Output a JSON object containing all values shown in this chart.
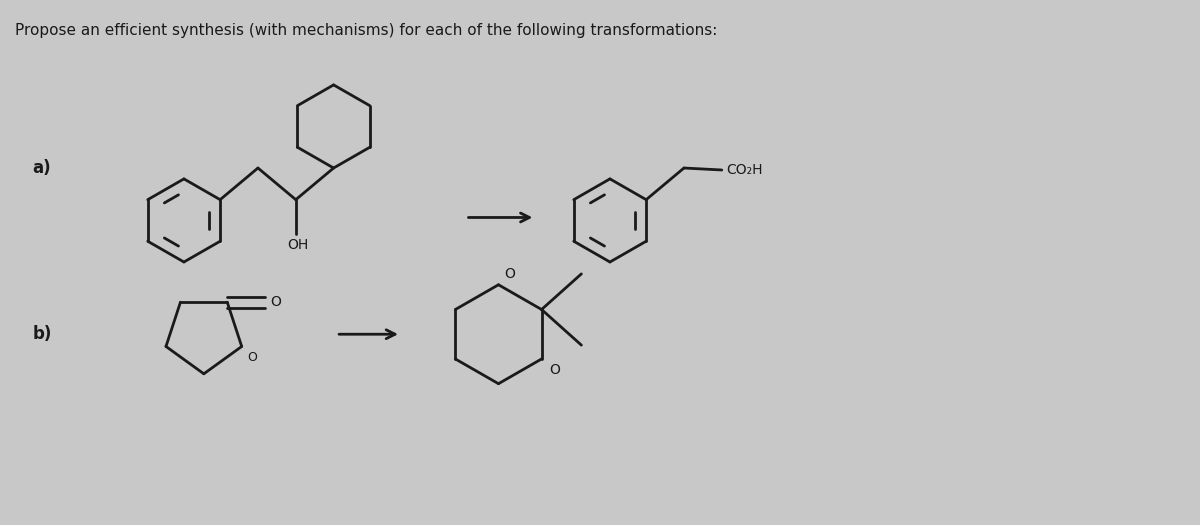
{
  "title": "Propose an efficient synthesis (with mechanisms) for each of the following transformations:",
  "title_fontsize": 11,
  "bg_color": "#c8c8c8",
  "label_a": "a)",
  "label_b": "b)",
  "line_color": "#1a1a1a",
  "line_width": 2.0
}
